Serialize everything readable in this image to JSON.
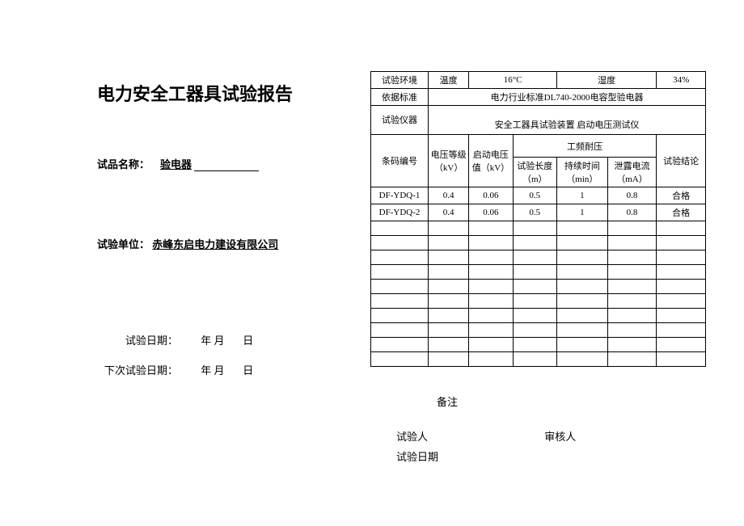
{
  "left": {
    "title": "电力安全工器具试验报告",
    "sample_label": "试品名称：",
    "sample_value": "验电器",
    "unit_label": "试验单位：",
    "unit_value": "赤峰东启电力建设有限公司",
    "test_date_label": "试验日期：",
    "next_date_label": "下次试验日期：",
    "date_placeholder": "年 月",
    "day_placeholder": "日"
  },
  "table": {
    "env_label": "试验环境",
    "temp_label": "温度",
    "temp_value": "16°C",
    "humid_label": "湿度",
    "humid_value": "34%",
    "std_label": "依据标准",
    "std_value": "电力行业标准DL740-2000电容型验电器",
    "instr_label": "试验仪器",
    "instr_value": "安全工器具试验装置 启动电压测试仪",
    "col_barcode": "条码编号",
    "col_voltage": "电压等级（kV）",
    "col_startv": "启动电压值（kV）",
    "col_freq": "工频耐压",
    "col_len": "试验长度（m）",
    "col_time": "持续时间（min）",
    "col_leak": "泄露电流（mA）",
    "col_result": "试验结论",
    "rows": [
      {
        "code": "DF-YDQ-1",
        "v": "0.4",
        "sv": "0.06",
        "len": "0.5",
        "t": "1",
        "leak": "0.8",
        "res": "合格"
      },
      {
        "code": "DF-YDQ-2",
        "v": "0.4",
        "sv": "0.06",
        "len": "0.5",
        "t": "1",
        "leak": "0.8",
        "res": "合格"
      }
    ],
    "empty_row_count": 10
  },
  "footer": {
    "remark": "备注",
    "tester": "试验人",
    "reviewer": "审核人",
    "test_date": "试验日期"
  },
  "style": {
    "border_color": "#000000",
    "bg_color": "#ffffff",
    "text_color": "#000000",
    "title_fontsize": 22,
    "body_fontsize": 12,
    "table_fontsize": 11
  }
}
